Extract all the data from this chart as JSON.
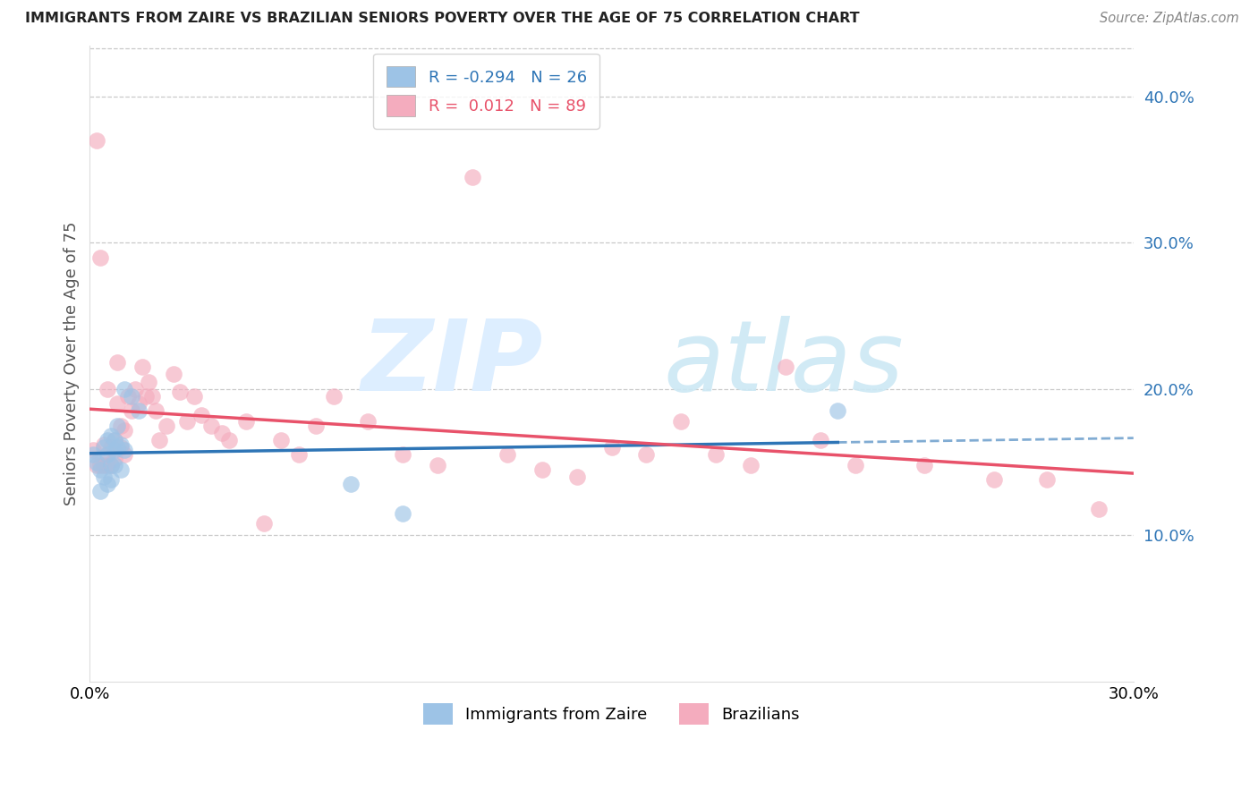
{
  "title": "IMMIGRANTS FROM ZAIRE VS BRAZILIAN SENIORS POVERTY OVER THE AGE OF 75 CORRELATION CHART",
  "source": "Source: ZipAtlas.com",
  "ylabel": "Seniors Poverty Over the Age of 75",
  "xlim": [
    0.0,
    0.3
  ],
  "ylim": [
    0.0,
    0.435
  ],
  "legend_R_blue": "-0.294",
  "legend_N_blue": "26",
  "legend_R_pink": "0.012",
  "legend_N_pink": "89",
  "blue_color": "#9DC3E6",
  "pink_color": "#F4ACBE",
  "blue_line_color": "#2E75B6",
  "pink_line_color": "#E8526A",
  "grid_color": "#C9C9C9",
  "blue_points_x": [
    0.001,
    0.002,
    0.003,
    0.003,
    0.004,
    0.004,
    0.005,
    0.005,
    0.005,
    0.006,
    0.006,
    0.006,
    0.007,
    0.007,
    0.007,
    0.008,
    0.008,
    0.009,
    0.009,
    0.01,
    0.01,
    0.012,
    0.014,
    0.075,
    0.09,
    0.215
  ],
  "blue_points_y": [
    0.155,
    0.15,
    0.13,
    0.145,
    0.16,
    0.14,
    0.155,
    0.165,
    0.135,
    0.148,
    0.138,
    0.168,
    0.158,
    0.148,
    0.165,
    0.16,
    0.175,
    0.145,
    0.162,
    0.2,
    0.158,
    0.195,
    0.185,
    0.135,
    0.115,
    0.185
  ],
  "pink_points_x": [
    0.001,
    0.002,
    0.002,
    0.003,
    0.003,
    0.004,
    0.004,
    0.005,
    0.005,
    0.005,
    0.006,
    0.006,
    0.007,
    0.007,
    0.008,
    0.008,
    0.009,
    0.009,
    0.01,
    0.01,
    0.011,
    0.012,
    0.013,
    0.014,
    0.015,
    0.016,
    0.017,
    0.018,
    0.019,
    0.02,
    0.022,
    0.024,
    0.026,
    0.028,
    0.03,
    0.032,
    0.035,
    0.038,
    0.04,
    0.045,
    0.05,
    0.055,
    0.06,
    0.065,
    0.07,
    0.08,
    0.09,
    0.1,
    0.11,
    0.12,
    0.13,
    0.14,
    0.15,
    0.16,
    0.17,
    0.18,
    0.19,
    0.2,
    0.21,
    0.22,
    0.24,
    0.26,
    0.275,
    0.29
  ],
  "pink_points_y": [
    0.158,
    0.148,
    0.37,
    0.148,
    0.29,
    0.162,
    0.148,
    0.148,
    0.155,
    0.2,
    0.16,
    0.148,
    0.165,
    0.152,
    0.218,
    0.19,
    0.175,
    0.16,
    0.172,
    0.155,
    0.195,
    0.185,
    0.2,
    0.19,
    0.215,
    0.195,
    0.205,
    0.195,
    0.185,
    0.165,
    0.175,
    0.21,
    0.198,
    0.178,
    0.195,
    0.182,
    0.175,
    0.17,
    0.165,
    0.178,
    0.108,
    0.165,
    0.155,
    0.175,
    0.195,
    0.178,
    0.155,
    0.148,
    0.345,
    0.155,
    0.145,
    0.14,
    0.16,
    0.155,
    0.178,
    0.155,
    0.148,
    0.215,
    0.165,
    0.148,
    0.148,
    0.138,
    0.138,
    0.118
  ]
}
